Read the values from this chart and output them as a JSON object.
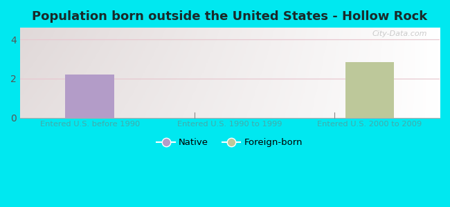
{
  "title": "Population born outside the United States - Hollow Rock",
  "categories": [
    "Entered U.S. before 1990",
    "Entered U.S. 1990 to 1999",
    "Entered U.S. 2000 to 2009"
  ],
  "native_values": [
    2.2,
    0,
    0
  ],
  "foreign_values": [
    0,
    0,
    2.85
  ],
  "native_color": "#b39cc8",
  "foreign_color": "#bdc89a",
  "background_outer": "#00e8f0",
  "ylim": [
    0,
    4.6
  ],
  "yticks": [
    0,
    2,
    4
  ],
  "grid_color": "#e8c8d0",
  "title_fontsize": 13,
  "title_color": "#1a2a2a",
  "tick_label_color": "#44aaaa",
  "watermark": "City-Data.com",
  "legend_native": "Native",
  "legend_foreign": "Foreign-born",
  "bar_width": 0.35
}
